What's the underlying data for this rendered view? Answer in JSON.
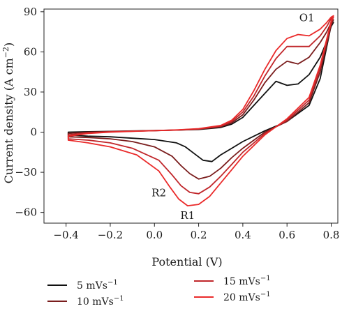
{
  "chart_data": {
    "type": "line",
    "xlabel": "Potential (V)",
    "ylabel": "Current density (A cm",
    "ylabel_unit_exp": "−2",
    "ylabel_close": ")",
    "xlim": [
      -0.5,
      0.83
    ],
    "ylim": [
      -68,
      92
    ],
    "xticks": [
      -0.4,
      -0.2,
      0.0,
      0.2,
      0.4,
      0.6,
      0.8
    ],
    "xtick_labels": [
      "−0.4",
      "−0.2",
      "0.0",
      "0.2",
      "0.4",
      "0.6",
      "0.8"
    ],
    "yticks": [
      -60,
      -30,
      0,
      30,
      60,
      90
    ],
    "ytick_labels": [
      "−60",
      "−30",
      "0",
      "30",
      "60",
      "90"
    ],
    "grid": false,
    "legend_position": "bottom",
    "annotations": [
      {
        "text": "O1",
        "x": 0.69,
        "y": 83
      },
      {
        "text": "R2",
        "x": 0.02,
        "y": -48
      },
      {
        "text": "R1",
        "x": 0.15,
        "y": -65
      }
    ],
    "series": [
      {
        "name": "5 mVs",
        "name_exp": "−1",
        "color": "#111111",
        "points": [
          [
            -0.39,
            0
          ],
          [
            -0.3,
            0.3
          ],
          [
            -0.2,
            0.6
          ],
          [
            -0.1,
            0.9
          ],
          [
            0.0,
            1.2
          ],
          [
            0.1,
            1.6
          ],
          [
            0.2,
            2
          ],
          [
            0.3,
            3.5
          ],
          [
            0.35,
            6
          ],
          [
            0.4,
            11
          ],
          [
            0.45,
            20
          ],
          [
            0.5,
            29
          ],
          [
            0.55,
            38
          ],
          [
            0.6,
            35
          ],
          [
            0.65,
            36
          ],
          [
            0.7,
            43
          ],
          [
            0.75,
            56
          ],
          [
            0.78,
            68
          ],
          [
            0.8,
            79
          ],
          [
            0.81,
            82
          ],
          [
            0.8,
            80
          ],
          [
            0.75,
            40
          ],
          [
            0.7,
            20
          ],
          [
            0.6,
            8
          ],
          [
            0.5,
            1
          ],
          [
            0.45,
            -3
          ],
          [
            0.4,
            -7
          ],
          [
            0.35,
            -12
          ],
          [
            0.3,
            -17
          ],
          [
            0.26,
            -22
          ],
          [
            0.22,
            -21
          ],
          [
            0.18,
            -16
          ],
          [
            0.14,
            -11
          ],
          [
            0.1,
            -8
          ],
          [
            0.0,
            -5.5
          ],
          [
            -0.1,
            -4.5
          ],
          [
            -0.2,
            -3.5
          ],
          [
            -0.3,
            -3
          ],
          [
            -0.39,
            -2
          ]
        ]
      },
      {
        "name": "10 mVs",
        "name_exp": "−1",
        "color": "#7a1d1d",
        "points": [
          [
            -0.39,
            -1
          ],
          [
            -0.3,
            0
          ],
          [
            -0.2,
            0.5
          ],
          [
            -0.1,
            0.8
          ],
          [
            0.0,
            1.1
          ],
          [
            0.1,
            1.5
          ],
          [
            0.2,
            2.2
          ],
          [
            0.3,
            4
          ],
          [
            0.35,
            7
          ],
          [
            0.4,
            13
          ],
          [
            0.45,
            24
          ],
          [
            0.5,
            37
          ],
          [
            0.55,
            47
          ],
          [
            0.6,
            53
          ],
          [
            0.65,
            51
          ],
          [
            0.7,
            56
          ],
          [
            0.75,
            67
          ],
          [
            0.78,
            75
          ],
          [
            0.8,
            82
          ],
          [
            0.81,
            84
          ],
          [
            0.8,
            80
          ],
          [
            0.75,
            45
          ],
          [
            0.7,
            22
          ],
          [
            0.6,
            8
          ],
          [
            0.5,
            0
          ],
          [
            0.45,
            -6
          ],
          [
            0.4,
            -12
          ],
          [
            0.35,
            -19
          ],
          [
            0.3,
            -27
          ],
          [
            0.25,
            -33
          ],
          [
            0.2,
            -35
          ],
          [
            0.16,
            -31
          ],
          [
            0.12,
            -25
          ],
          [
            0.08,
            -18
          ],
          [
            0.0,
            -11
          ],
          [
            -0.1,
            -7
          ],
          [
            -0.2,
            -5
          ],
          [
            -0.3,
            -4
          ],
          [
            -0.39,
            -3.5
          ]
        ]
      },
      {
        "name": "15 mVs",
        "name_exp": "−1",
        "color": "#c0262a",
        "points": [
          [
            -0.39,
            -2
          ],
          [
            -0.3,
            -0.5
          ],
          [
            -0.2,
            0.3
          ],
          [
            -0.1,
            0.7
          ],
          [
            0.0,
            1.1
          ],
          [
            0.1,
            1.6
          ],
          [
            0.2,
            2.4
          ],
          [
            0.3,
            4.5
          ],
          [
            0.35,
            8
          ],
          [
            0.4,
            15
          ],
          [
            0.45,
            27
          ],
          [
            0.5,
            42
          ],
          [
            0.55,
            55
          ],
          [
            0.6,
            64
          ],
          [
            0.65,
            64
          ],
          [
            0.7,
            64
          ],
          [
            0.75,
            72
          ],
          [
            0.78,
            79
          ],
          [
            0.8,
            85
          ],
          [
            0.81,
            86
          ],
          [
            0.8,
            82
          ],
          [
            0.75,
            48
          ],
          [
            0.7,
            24
          ],
          [
            0.6,
            9
          ],
          [
            0.5,
            -1
          ],
          [
            0.45,
            -8
          ],
          [
            0.4,
            -15
          ],
          [
            0.35,
            -24
          ],
          [
            0.3,
            -33
          ],
          [
            0.25,
            -41
          ],
          [
            0.2,
            -46
          ],
          [
            0.16,
            -45
          ],
          [
            0.12,
            -40
          ],
          [
            0.08,
            -32
          ],
          [
            0.02,
            -21
          ],
          [
            -0.1,
            -12
          ],
          [
            -0.2,
            -8
          ],
          [
            -0.3,
            -6
          ],
          [
            -0.39,
            -5
          ]
        ]
      },
      {
        "name": "20 mVs",
        "name_exp": "−1",
        "color": "#ea2a2a",
        "points": [
          [
            -0.39,
            -3
          ],
          [
            -0.3,
            -1
          ],
          [
            -0.2,
            0
          ],
          [
            -0.1,
            0.6
          ],
          [
            0.0,
            1.1
          ],
          [
            0.1,
            1.7
          ],
          [
            0.2,
            2.6
          ],
          [
            0.3,
            5
          ],
          [
            0.35,
            9
          ],
          [
            0.4,
            17
          ],
          [
            0.45,
            31
          ],
          [
            0.5,
            47
          ],
          [
            0.55,
            61
          ],
          [
            0.6,
            70
          ],
          [
            0.65,
            73
          ],
          [
            0.7,
            72
          ],
          [
            0.75,
            77
          ],
          [
            0.78,
            82
          ],
          [
            0.8,
            86
          ],
          [
            0.81,
            87
          ],
          [
            0.8,
            83
          ],
          [
            0.75,
            50
          ],
          [
            0.7,
            26
          ],
          [
            0.6,
            10
          ],
          [
            0.5,
            -2
          ],
          [
            0.45,
            -10
          ],
          [
            0.4,
            -18
          ],
          [
            0.35,
            -28
          ],
          [
            0.3,
            -38
          ],
          [
            0.25,
            -48
          ],
          [
            0.2,
            -54
          ],
          [
            0.15,
            -55
          ],
          [
            0.11,
            -50
          ],
          [
            0.07,
            -41
          ],
          [
            0.02,
            -29
          ],
          [
            -0.08,
            -17
          ],
          [
            -0.2,
            -11
          ],
          [
            -0.3,
            -8
          ],
          [
            -0.39,
            -6
          ]
        ]
      }
    ]
  }
}
